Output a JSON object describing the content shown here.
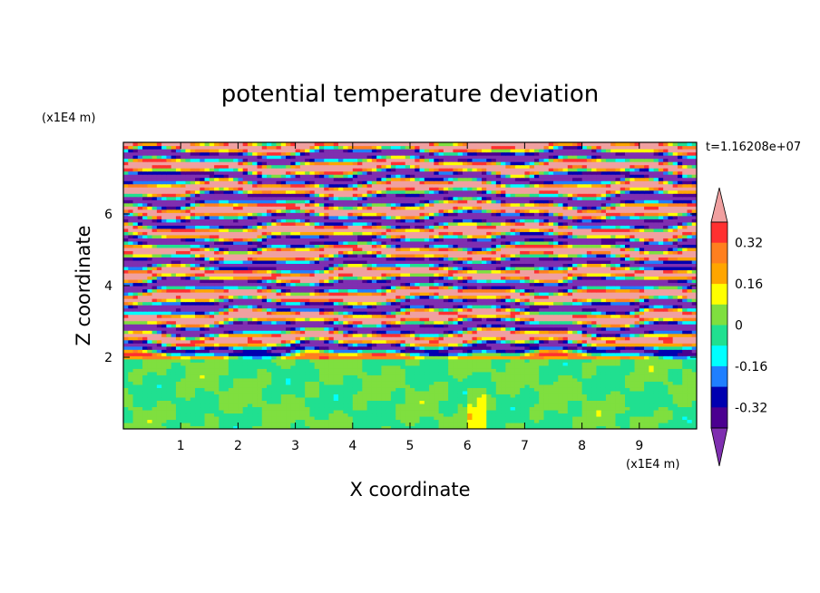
{
  "chart_data": {
    "type": "heatmap",
    "title": "potential temperature deviation",
    "xlabel": "X coordinate",
    "ylabel": "Z coordinate",
    "x_unit": "(x1E4 m)",
    "y_unit": "(x1E4 m)",
    "time_label": "t=1.16208e+07",
    "x_ticks": [
      "1",
      "2",
      "3",
      "4",
      "5",
      "6",
      "7",
      "8",
      "9"
    ],
    "y_ticks": [
      "2",
      "4",
      "6"
    ],
    "xlim": [
      0,
      10
    ],
    "ylim": [
      0,
      8
    ],
    "colorbar": {
      "labels": [
        "0.32",
        "0.16",
        "0",
        "-0.16",
        "-0.32"
      ],
      "levels": [
        0.4,
        0.32,
        0.24,
        0.16,
        0.08,
        0,
        -0.08,
        -0.16,
        -0.24,
        -0.32,
        -0.4
      ],
      "colors": [
        "#f0a0a0",
        "#ff3030",
        "#ff7f1f",
        "#ffa500",
        "#ffff00",
        "#7fdf3f",
        "#20e090",
        "#00ffff",
        "#1f7fff",
        "#0000b0",
        "#4b0090",
        "#7f2fb0"
      ]
    },
    "layers": [
      {
        "z": [
          0,
          2
        ],
        "fill": "#20e090",
        "detail": "lower region mostly near-zero with scattered weak positive patches"
      },
      {
        "z": [
          2,
          8
        ],
        "fill": "banded",
        "detail": "upper region with alternating strong positive (~0.4) and strong negative (~-0.4) horizontal layers"
      }
    ]
  }
}
